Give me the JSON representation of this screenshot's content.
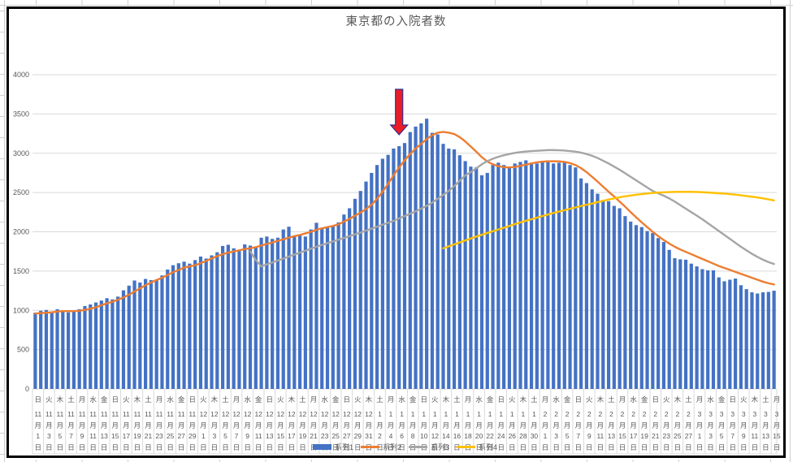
{
  "chart": {
    "text_color": "#595959",
    "gridline_color": "#D9D9D9",
    "border_color": "#000000",
    "background": "#FFFFFF"
  },
  "chart_data": {
    "type": "combo",
    "title": "東京都の入院者数",
    "ylim": [
      0,
      4000
    ],
    "y_ticks": [
      0,
      500,
      1000,
      1500,
      2000,
      2500,
      3000,
      3500,
      4000
    ],
    "grid": "horizontal",
    "legend_position": "bottom-center",
    "n_categories": 135,
    "x_range": "11月1日〜3月15日 (毎日)",
    "x_label_interval": 2,
    "x_tick_labels": [
      [
        "日",
        "11月1日"
      ],
      [
        "火",
        "11月3日"
      ],
      [
        "木",
        "11月5日"
      ],
      [
        "土",
        "11月7日"
      ],
      [
        "月",
        "11月9日"
      ],
      [
        "水",
        "11月11日"
      ],
      [
        "金",
        "11月13日"
      ],
      [
        "日",
        "11月15日"
      ],
      [
        "火",
        "11月17日"
      ],
      [
        "木",
        "11月19日"
      ],
      [
        "土",
        "11月21日"
      ],
      [
        "月",
        "11月23日"
      ],
      [
        "水",
        "11月25日"
      ],
      [
        "金",
        "11月27日"
      ],
      [
        "日",
        "11月29日"
      ],
      [
        "火",
        "12月1日"
      ],
      [
        "木",
        "12月3日"
      ],
      [
        "土",
        "12月5日"
      ],
      [
        "月",
        "12月7日"
      ],
      [
        "水",
        "12月9日"
      ],
      [
        "金",
        "12月11日"
      ],
      [
        "日",
        "12月13日"
      ],
      [
        "火",
        "12月15日"
      ],
      [
        "木",
        "12月17日"
      ],
      [
        "土",
        "12月19日"
      ],
      [
        "月",
        "12月21日"
      ],
      [
        "水",
        "12月23日"
      ],
      [
        "金",
        "12月25日"
      ],
      [
        "日",
        "12月27日"
      ],
      [
        "火",
        "12月29日"
      ],
      [
        "木",
        "12月31日"
      ],
      [
        "土",
        "1月2日"
      ],
      [
        "月",
        "1月4日"
      ],
      [
        "水",
        "1月6日"
      ],
      [
        "金",
        "1月8日"
      ],
      [
        "日",
        "1月10日"
      ],
      [
        "火",
        "1月12日"
      ],
      [
        "木",
        "1月14日"
      ],
      [
        "土",
        "1月16日"
      ],
      [
        "月",
        "1月18日"
      ],
      [
        "水",
        "1月20日"
      ],
      [
        "金",
        "1月22日"
      ],
      [
        "日",
        "1月24日"
      ],
      [
        "火",
        "1月26日"
      ],
      [
        "木",
        "1月28日"
      ],
      [
        "土",
        "1月30日"
      ],
      [
        "月",
        "2月1日"
      ],
      [
        "水",
        "2月3日"
      ],
      [
        "金",
        "2月5日"
      ],
      [
        "日",
        "2月7日"
      ],
      [
        "火",
        "2月9日"
      ],
      [
        "木",
        "2月11日"
      ],
      [
        "土",
        "2月13日"
      ],
      [
        "月",
        "2月15日"
      ],
      [
        "水",
        "2月17日"
      ],
      [
        "金",
        "2月19日"
      ],
      [
        "日",
        "2月21日"
      ],
      [
        "火",
        "2月23日"
      ],
      [
        "木",
        "2月25日"
      ],
      [
        "土",
        "2月27日"
      ],
      [
        "月",
        "3月1日"
      ],
      [
        "水",
        "3月3日"
      ],
      [
        "金",
        "3月5日"
      ],
      [
        "日",
        "3月7日"
      ],
      [
        "火",
        "3月9日"
      ],
      [
        "木",
        "3月11日"
      ],
      [
        "土",
        "3月13日"
      ],
      [
        "月",
        "3月15日"
      ]
    ],
    "series": [
      {
        "name": "系列1",
        "type": "bar",
        "color": "#4472C4",
        "start_index": 0,
        "values": [
          970,
          995,
          1005,
          985,
          1015,
          1000,
          975,
          985,
          1015,
          1055,
          1075,
          1100,
          1125,
          1155,
          1140,
          1175,
          1255,
          1315,
          1380,
          1355,
          1400,
          1385,
          1395,
          1445,
          1520,
          1575,
          1600,
          1620,
          1595,
          1640,
          1685,
          1660,
          1700,
          1740,
          1820,
          1835,
          1790,
          1755,
          1840,
          1825,
          1805,
          1925,
          1940,
          1910,
          1925,
          2030,
          2065,
          1945,
          1960,
          1940,
          2030,
          2115,
          2050,
          2065,
          2080,
          2120,
          2220,
          2300,
          2420,
          2520,
          2640,
          2750,
          2850,
          2930,
          2980,
          3060,
          3090,
          3130,
          3270,
          3340,
          3380,
          3440,
          3260,
          3240,
          3120,
          3060,
          3050,
          2975,
          2900,
          2830,
          2820,
          2720,
          2750,
          2850,
          2880,
          2850,
          2830,
          2870,
          2890,
          2910,
          2880,
          2870,
          2890,
          2910,
          2870,
          2880,
          2890,
          2850,
          2820,
          2680,
          2620,
          2540,
          2485,
          2405,
          2390,
          2330,
          2300,
          2200,
          2130,
          2085,
          2060,
          2010,
          1985,
          1920,
          1870,
          1770,
          1665,
          1650,
          1645,
          1595,
          1560,
          1525,
          1510,
          1510,
          1420,
          1370,
          1390,
          1405,
          1320,
          1270,
          1230,
          1215,
          1230,
          1235,
          1250
        ]
      },
      {
        "name": "系列2",
        "type": "line",
        "color": "#ED7D31",
        "start_index": 0,
        "values": [
          960,
          965,
          970,
          975,
          985,
          990,
          990,
          990,
          995,
          1005,
          1020,
          1040,
          1065,
          1090,
          1110,
          1135,
          1165,
          1200,
          1240,
          1280,
          1320,
          1355,
          1385,
          1415,
          1450,
          1485,
          1515,
          1545,
          1560,
          1575,
          1600,
          1630,
          1660,
          1690,
          1715,
          1735,
          1750,
          1765,
          1780,
          1790,
          1805,
          1825,
          1845,
          1865,
          1885,
          1905,
          1925,
          1945,
          1960,
          1980,
          2000,
          2025,
          2045,
          2060,
          2075,
          2095,
          2130,
          2165,
          2205,
          2245,
          2290,
          2345,
          2420,
          2510,
          2610,
          2720,
          2820,
          2910,
          2990,
          3060,
          3120,
          3180,
          3230,
          3262,
          3272,
          3262,
          3245,
          3205,
          3150,
          3085,
          3020,
          2950,
          2895,
          2860,
          2835,
          2822,
          2820,
          2825,
          2840,
          2855,
          2870,
          2885,
          2893,
          2897,
          2898,
          2897,
          2890,
          2875,
          2850,
          2810,
          2760,
          2700,
          2640,
          2575,
          2510,
          2450,
          2385,
          2320,
          2250,
          2185,
          2120,
          2060,
          2000,
          1945,
          1895,
          1850,
          1810,
          1775,
          1745,
          1715,
          1685,
          1655,
          1625,
          1595,
          1565,
          1540,
          1515,
          1490,
          1465,
          1440,
          1415,
          1390,
          1365,
          1345,
          1330
        ]
      },
      {
        "name": "系列3",
        "type": "line",
        "color": "#A5A5A5",
        "start_index": 39,
        "values": [
          1750,
          1640,
          1560,
          1585,
          1610,
          1635,
          1660,
          1685,
          1710,
          1735,
          1760,
          1785,
          1810,
          1832,
          1855,
          1878,
          1900,
          1922,
          1945,
          1968,
          1990,
          2015,
          2040,
          2065,
          2090,
          2115,
          2140,
          2170,
          2200,
          2230,
          2260,
          2295,
          2330,
          2372,
          2420,
          2470,
          2520,
          2583,
          2650,
          2718,
          2760,
          2808,
          2860,
          2900,
          2930,
          2955,
          2975,
          2990,
          3005,
          3015,
          3022,
          3028,
          3032,
          3036,
          3040,
          3040,
          3038,
          3034,
          3028,
          3020,
          3008,
          2990,
          2968,
          2940,
          2905,
          2870,
          2830,
          2790,
          2745,
          2700,
          2655,
          2610,
          2565,
          2520,
          2490,
          2460,
          2425,
          2385,
          2340,
          2295,
          2250,
          2205,
          2160,
          2110,
          2060,
          2010,
          1960,
          1910,
          1860,
          1810,
          1765,
          1720,
          1680,
          1645,
          1615,
          1590
        ]
      },
      {
        "name": "系列4",
        "type": "line",
        "color": "#FFC000",
        "start_index": 74,
        "values": [
          1790,
          1815,
          1840,
          1865,
          1890,
          1915,
          1940,
          1962,
          1985,
          2008,
          2030,
          2052,
          2075,
          2098,
          2120,
          2140,
          2160,
          2180,
          2200,
          2220,
          2240,
          2258,
          2275,
          2293,
          2310,
          2328,
          2345,
          2360,
          2378,
          2395,
          2410,
          2425,
          2440,
          2452,
          2462,
          2472,
          2480,
          2488,
          2494,
          2499,
          2503,
          2506,
          2508,
          2509,
          2510,
          2509,
          2507,
          2504,
          2500,
          2496,
          2491,
          2486,
          2480,
          2473,
          2465,
          2456,
          2447,
          2437,
          2426,
          2413,
          2400
        ]
      }
    ],
    "annotation": {
      "type": "down-arrow",
      "fill": "#EC1C24",
      "outline": "#2E3192",
      "points_at_index": 66,
      "points_at_date": "1月6日"
    }
  }
}
